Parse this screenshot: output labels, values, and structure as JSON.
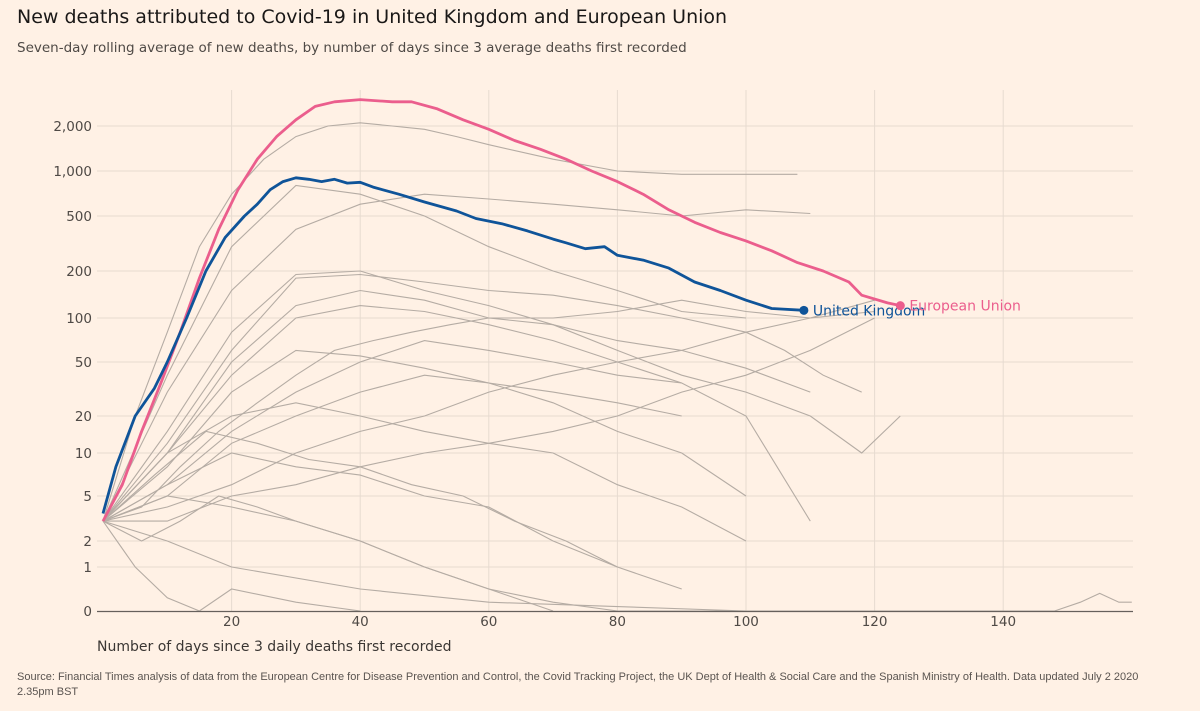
{
  "title": "New deaths attributed to Covid-19 in United Kingdom and European Union",
  "subtitle": "Seven-day rolling average of new deaths, by number of days since 3 average deaths first recorded",
  "source": "Source: Financial Times analysis of data from the European Centre for Disease Prevention and Control, the Covid Tracking Project, the UK Dept of Health & Social Care and the Spanish Ministry of Health. Data updated July 2 2020 2.35pm BST",
  "chart_data": {
    "type": "line",
    "xlabel": "Number of days since 3 daily deaths first recorded",
    "ylabel": "",
    "xlim": [
      0,
      160
    ],
    "x_ticks": [
      20,
      40,
      60,
      80,
      100,
      120,
      140
    ],
    "x_tick_labels": [
      "20",
      "40",
      "60",
      "80",
      "100",
      "120",
      "140"
    ],
    "y_scale": "log (with zero)",
    "y_ticks": [
      0,
      1,
      2,
      5,
      10,
      20,
      50,
      100,
      200,
      500,
      1000,
      2000
    ],
    "y_tick_labels": [
      "0",
      "1",
      "2",
      "5",
      "10",
      "20",
      "50",
      "100",
      "200",
      "500",
      "1,000",
      "2,000"
    ],
    "grid": true,
    "colors": {
      "background": "#FFF1E5",
      "grid": "#e7dbd0",
      "other": "#b5aca4",
      "uk": "#0f5499",
      "eu": "#eb5e8d"
    },
    "highlighted": [
      {
        "name": "United Kingdom",
        "label": "United Kingdom",
        "color": "#0f5499",
        "x": [
          0,
          2,
          5,
          8,
          10,
          13,
          16,
          19,
          22,
          24,
          26,
          28,
          30,
          32,
          34,
          36,
          38,
          40,
          42,
          46,
          50,
          55,
          58,
          62,
          66,
          70,
          72,
          75,
          78,
          80,
          84,
          88,
          92,
          96,
          100,
          104,
          109
        ],
        "y": [
          3.5,
          8,
          20,
          32,
          50,
          100,
          200,
          350,
          500,
          600,
          750,
          850,
          900,
          880,
          850,
          880,
          830,
          840,
          780,
          700,
          620,
          540,
          480,
          440,
          390,
          340,
          320,
          290,
          300,
          260,
          240,
          210,
          170,
          150,
          130,
          115,
          112
        ]
      },
      {
        "name": "European Union",
        "label": "European Union",
        "color": "#eb5e8d",
        "x": [
          0,
          3,
          6,
          9,
          12,
          15,
          18,
          21,
          24,
          27,
          30,
          33,
          36,
          40,
          45,
          48,
          52,
          56,
          60,
          64,
          68,
          72,
          76,
          80,
          84,
          88,
          92,
          96,
          100,
          104,
          108,
          112,
          116,
          118,
          122,
          124
        ],
        "y": [
          3,
          6,
          15,
          35,
          80,
          180,
          400,
          750,
          1200,
          1700,
          2200,
          2700,
          2900,
          3000,
          2900,
          2900,
          2600,
          2200,
          1900,
          1600,
          1400,
          1200,
          1000,
          850,
          700,
          550,
          450,
          380,
          330,
          280,
          230,
          200,
          170,
          140,
          125,
          120
        ]
      }
    ],
    "other_series": [
      {
        "x": [
          0,
          5,
          10,
          15,
          20,
          25,
          30,
          35,
          40,
          45,
          50,
          55,
          60,
          70,
          80,
          90,
          100,
          108
        ],
        "y": [
          3,
          20,
          80,
          300,
          700,
          1200,
          1700,
          2000,
          2100,
          2000,
          1900,
          1700,
          1500,
          1200,
          1000,
          950,
          950,
          950
        ]
      },
      {
        "x": [
          0,
          10,
          20,
          30,
          40,
          50,
          60,
          70,
          80,
          90,
          100,
          110
        ],
        "y": [
          3,
          30,
          150,
          400,
          600,
          700,
          650,
          600,
          550,
          500,
          550,
          520
        ]
      },
      {
        "x": [
          0,
          10,
          20,
          30,
          40,
          50,
          60,
          70,
          80,
          90,
          100
        ],
        "y": [
          3,
          40,
          300,
          800,
          700,
          500,
          300,
          200,
          150,
          110,
          100
        ]
      },
      {
        "x": [
          0,
          10,
          20,
          30,
          40,
          50,
          60,
          70,
          80,
          90,
          100,
          110,
          118,
          124
        ],
        "y": [
          3,
          15,
          80,
          190,
          200,
          150,
          120,
          90,
          60,
          40,
          30,
          20,
          10,
          20
        ]
      },
      {
        "x": [
          0,
          10,
          20,
          30,
          40,
          50,
          60,
          70,
          80,
          90,
          100,
          110,
          120
        ],
        "y": [
          3,
          10,
          50,
          120,
          150,
          130,
          100,
          100,
          110,
          130,
          110,
          100,
          130
        ]
      },
      {
        "x": [
          0,
          10,
          20,
          30,
          40,
          50,
          60,
          70,
          80,
          90,
          100
        ],
        "y": [
          3,
          8,
          30,
          60,
          55,
          45,
          35,
          25,
          15,
          10,
          5
        ]
      },
      {
        "x": [
          0,
          10,
          20,
          30,
          40,
          50,
          60,
          70,
          80,
          90,
          100
        ],
        "y": [
          3,
          10,
          20,
          25,
          20,
          15,
          12,
          10,
          6,
          4,
          2
        ]
      },
      {
        "x": [
          0,
          10,
          20,
          30,
          40,
          50,
          60,
          70,
          80,
          90
        ],
        "y": [
          3,
          6,
          10,
          8,
          7,
          5,
          4,
          2,
          1,
          0.5
        ]
      },
      {
        "x": [
          0,
          10,
          20,
          30,
          40,
          50,
          60,
          70,
          80,
          90,
          100
        ],
        "y": [
          3,
          5,
          4,
          3,
          2,
          1,
          0.5,
          0.2,
          0,
          0,
          0
        ]
      },
      {
        "x": [
          0,
          5,
          10,
          15,
          20,
          30,
          40
        ],
        "y": [
          3,
          1,
          0.3,
          0,
          0.5,
          0.2,
          0
        ]
      },
      {
        "x": [
          0,
          10,
          20,
          30,
          40,
          50,
          60,
          70,
          80,
          90,
          100,
          110,
          120
        ],
        "y": [
          3,
          4,
          6,
          10,
          15,
          20,
          30,
          40,
          50,
          60,
          80,
          100,
          110
        ]
      },
      {
        "x": [
          0,
          10,
          20,
          30,
          40,
          50,
          60,
          70,
          80,
          90
        ],
        "y": [
          3,
          5,
          12,
          20,
          30,
          40,
          35,
          30,
          25,
          20
        ]
      },
      {
        "x": [
          0,
          10,
          20,
          40,
          60,
          80,
          100,
          140,
          148,
          152,
          155,
          158,
          160
        ],
        "y": [
          3,
          2,
          1,
          0.5,
          0.2,
          0.1,
          0,
          0,
          0,
          0.2,
          0.4,
          0.2,
          0.2
        ]
      },
      {
        "x": [
          0,
          10,
          20,
          30,
          40,
          50,
          60,
          70,
          80,
          90
        ],
        "y": [
          3,
          10,
          40,
          100,
          120,
          110,
          90,
          70,
          50,
          35
        ]
      },
      {
        "x": [
          0,
          10,
          20,
          30,
          40,
          50,
          60,
          70,
          80,
          90,
          100,
          106,
          112,
          118
        ],
        "y": [
          3,
          12,
          60,
          180,
          190,
          170,
          150,
          140,
          120,
          100,
          80,
          60,
          40,
          30
        ]
      },
      {
        "x": [
          0,
          8,
          16,
          24,
          32,
          40,
          48,
          56,
          64,
          72,
          80
        ],
        "y": [
          3,
          7,
          15,
          12,
          9,
          8,
          6,
          5,
          3,
          2,
          1
        ]
      },
      {
        "x": [
          0,
          6,
          12,
          18,
          24,
          30,
          36,
          42,
          48,
          54,
          60,
          70,
          80,
          90,
          100,
          110
        ],
        "y": [
          3,
          4,
          8,
          15,
          25,
          40,
          60,
          70,
          80,
          90,
          100,
          90,
          70,
          60,
          45,
          30
        ]
      },
      {
        "x": [
          0,
          6,
          12,
          18,
          24,
          30,
          40,
          50,
          60,
          70
        ],
        "y": [
          3,
          2,
          3,
          5,
          4,
          3,
          2,
          1,
          0.5,
          0
        ]
      },
      {
        "x": [
          0,
          10,
          20,
          30,
          40,
          50,
          60,
          70,
          80,
          90,
          100,
          110
        ],
        "y": [
          3,
          6,
          15,
          30,
          50,
          70,
          60,
          50,
          40,
          35,
          20,
          3
        ]
      },
      {
        "x": [
          0,
          10,
          20,
          30,
          40,
          50,
          60,
          70,
          80,
          90,
          100,
          110,
          120
        ],
        "y": [
          3,
          3,
          5,
          6,
          8,
          10,
          12,
          15,
          20,
          30,
          40,
          60,
          100
        ]
      }
    ]
  }
}
